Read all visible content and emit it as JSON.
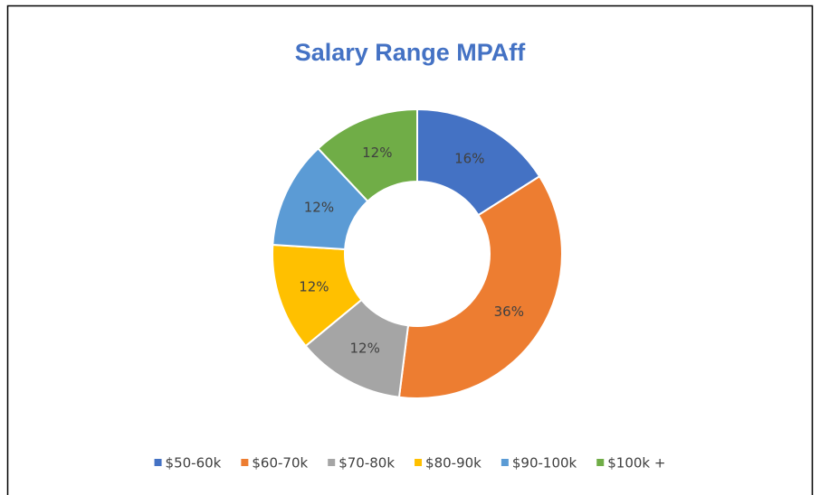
{
  "chart_data": {
    "type": "donut",
    "title": "Salary Range MPAff",
    "categories": [
      "$50-60k",
      "$60-70k",
      "$70-80k",
      "$80-90k",
      "$90-100k",
      "$100k +"
    ],
    "values": [
      16,
      36,
      12,
      12,
      12,
      12
    ],
    "value_labels": [
      "16%",
      "36%",
      "12%",
      "12%",
      "12%",
      "12%"
    ],
    "colors": [
      "#4472c4",
      "#ed7d31",
      "#a5a5a5",
      "#ffc000",
      "#5b9bd5",
      "#70ad47"
    ],
    "legend": "bottom"
  }
}
